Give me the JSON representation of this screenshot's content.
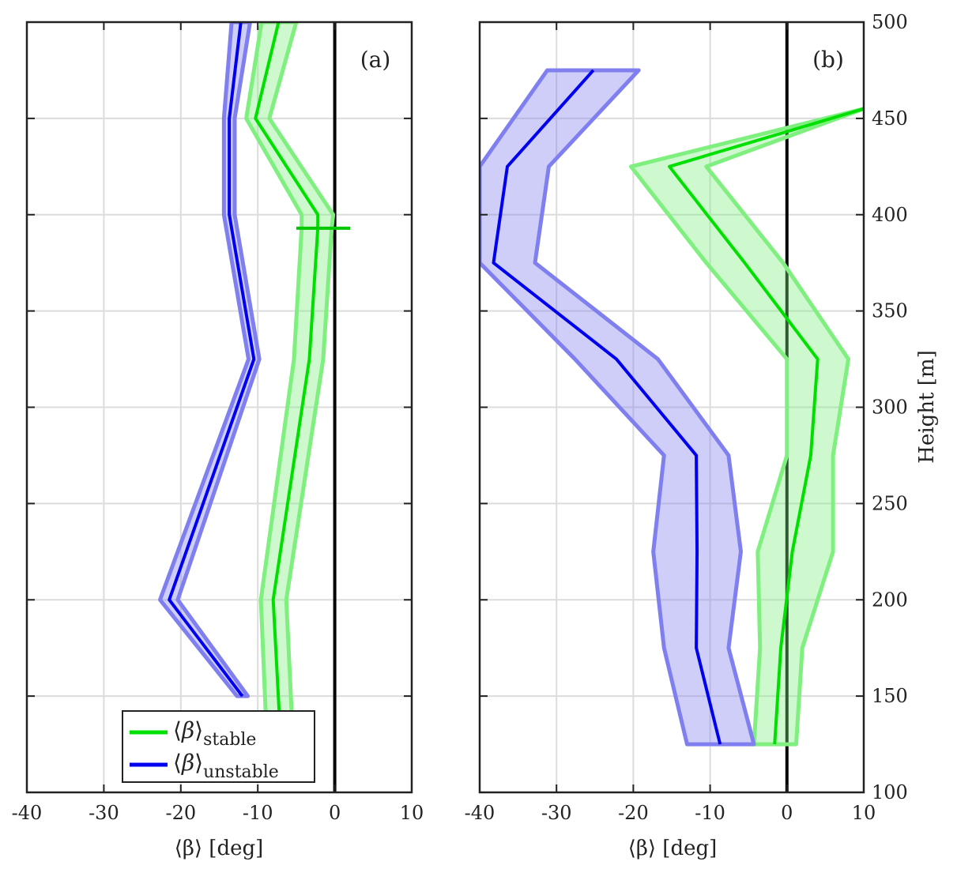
{
  "chart_data": [
    {
      "type": "line",
      "panel_label": "(a)",
      "xlabel": "⟨β⟩ [deg]",
      "ylabel": "",
      "xlim": [
        -40,
        10
      ],
      "ylim": [
        100,
        500
      ],
      "xticks": [
        -40,
        -30,
        -20,
        -10,
        0,
        10
      ],
      "yticks": [
        150,
        200,
        250,
        300,
        350,
        400,
        450,
        500
      ],
      "grid": true,
      "reference_line_x": 0,
      "legend": {
        "placement": "bottom-left",
        "entries": [
          "stable",
          "unstable"
        ]
      },
      "series": [
        {
          "name": "⟨β⟩stable",
          "color": "#00e000",
          "band_color": "#7fef7f",
          "points": [
            {
              "y": 125,
              "x": -7.0,
              "lo": -8.8,
              "hi": -5.4
            },
            {
              "y": 200,
              "x": -8.0,
              "lo": -9.6,
              "hi": -6.3
            },
            {
              "y": 325,
              "x": -3.3,
              "lo": -5.3,
              "hi": -1.5
            },
            {
              "y": 393,
              "x": -2.2,
              "lo": -4.3,
              "hi": -0.4
            },
            {
              "y": 400,
              "x": -2.2,
              "lo": -4.3,
              "hi": -0.2
            },
            {
              "y": 450,
              "x": -10.3,
              "lo": -11.5,
              "hi": -8.5
            },
            {
              "y": 500,
              "x": -7.3,
              "lo": -9.5,
              "hi": -5.0
            }
          ],
          "errorbar": {
            "y": 393,
            "x_from": -5.0,
            "x_to": 2.0
          }
        },
        {
          "name": "⟨β⟩unstable",
          "color": "#0000ee",
          "band_color": "#7f7fef",
          "points": [
            {
              "y": 150,
              "x": -12.0,
              "lo": -12.7,
              "hi": -11.3
            },
            {
              "y": 200,
              "x": -21.5,
              "lo": -22.7,
              "hi": -20.4
            },
            {
              "y": 325,
              "x": -10.5,
              "lo": -11.2,
              "hi": -9.8
            },
            {
              "y": 400,
              "x": -13.7,
              "lo": -14.4,
              "hi": -13.0
            },
            {
              "y": 450,
              "x": -13.7,
              "lo": -14.4,
              "hi": -13.0
            },
            {
              "y": 500,
              "x": -12.2,
              "lo": -13.4,
              "hi": -11.0
            }
          ]
        }
      ]
    },
    {
      "type": "line",
      "panel_label": "(b)",
      "xlabel": "⟨β⟩ [deg]",
      "ylabel": "Height [m]",
      "xlim": [
        -40,
        10
      ],
      "ylim": [
        100,
        500
      ],
      "xticks": [
        -40,
        -30,
        -20,
        -10,
        0,
        10
      ],
      "yticks": [
        100,
        150,
        200,
        250,
        300,
        350,
        400,
        450,
        500
      ],
      "grid": true,
      "reference_line_x": 0,
      "series": [
        {
          "name": "stable",
          "color": "#00e000",
          "band_color": "#7fef7f",
          "points": [
            {
              "y": 125,
              "x": -1.6,
              "lo": -4.3,
              "hi": 1.2
            },
            {
              "y": 175,
              "x": -0.8,
              "lo": -3.5,
              "hi": 2.0
            },
            {
              "y": 225,
              "x": 0.7,
              "lo": -3.8,
              "hi": 6.0
            },
            {
              "y": 275,
              "x": 3.1,
              "lo": 0.0,
              "hi": 6.0
            },
            {
              "y": 325,
              "x": 4.0,
              "lo": 0.0,
              "hi": 8.0
            },
            {
              "y": 375,
              "x": -5.5,
              "lo": -10.5,
              "hi": -0.5
            },
            {
              "y": 425,
              "x": -15.3,
              "lo": -20.3,
              "hi": -10.5
            },
            {
              "y": 455,
              "x": 10.0,
              "lo": 10.0,
              "hi": 10.0
            }
          ]
        },
        {
          "name": "unstable",
          "color": "#0000ee",
          "band_color": "#7f7fef",
          "points": [
            {
              "y": 125,
              "x": -8.7,
              "lo": -13.0,
              "hi": -4.3
            },
            {
              "y": 175,
              "x": -11.8,
              "lo": -16.0,
              "hi": -7.6
            },
            {
              "y": 225,
              "x": -11.7,
              "lo": -17.4,
              "hi": -6.0
            },
            {
              "y": 275,
              "x": -11.8,
              "lo": -16.0,
              "hi": -7.6
            },
            {
              "y": 325,
              "x": -22.2,
              "lo": -27.6,
              "hi": -16.8
            },
            {
              "y": 375,
              "x": -38.2,
              "lo": -40.0,
              "hi": -32.8
            },
            {
              "y": 425,
              "x": -36.4,
              "lo": -40.0,
              "hi": -31.0
            },
            {
              "y": 475,
              "x": -25.2,
              "lo": -31.2,
              "hi": -19.3
            }
          ]
        }
      ]
    }
  ]
}
